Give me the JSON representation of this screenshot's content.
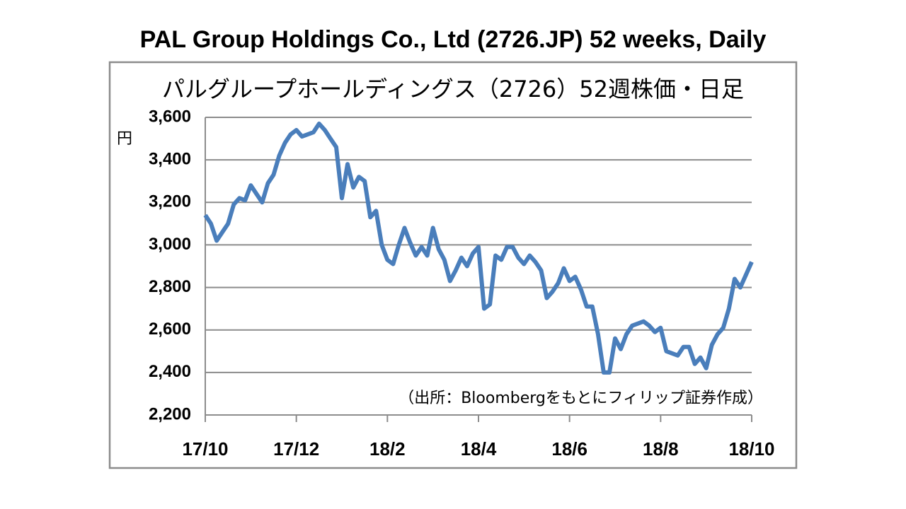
{
  "chart_data": {
    "type": "line",
    "title": "PAL Group Holdings Co., Ltd (2726.JP) 52 weeks, Daily",
    "subtitle": "パルグループホールディングス（2726）52週株価・日足",
    "y_unit": "円",
    "annotation": "（出所：Bloombergをもとにフィリップ証券作成）",
    "categories": [
      "17/10",
      null,
      null,
      null,
      null,
      null,
      null,
      null,
      null,
      null,
      null,
      null,
      null,
      null,
      null,
      null,
      "17/12",
      null,
      null,
      null,
      null,
      null,
      null,
      null,
      null,
      null,
      null,
      null,
      null,
      null,
      null,
      null,
      "18/2",
      null,
      null,
      null,
      null,
      null,
      null,
      null,
      null,
      null,
      null,
      null,
      null,
      null,
      null,
      null,
      "18/4",
      null,
      null,
      null,
      null,
      null,
      null,
      null,
      null,
      null,
      null,
      null,
      null,
      null,
      null,
      null,
      "18/6",
      null,
      null,
      null,
      null,
      null,
      null,
      null,
      null,
      null,
      null,
      null,
      null,
      null,
      null,
      null,
      "18/8",
      null,
      null,
      null,
      null,
      null,
      null,
      null,
      null,
      null,
      null,
      null,
      null,
      null,
      null,
      null,
      "18/10"
    ],
    "series": [
      {
        "name": "2726",
        "color": "#4a7ebb",
        "values": [
          3140,
          3100,
          3020,
          3060,
          3100,
          3190,
          3220,
          3210,
          3280,
          3240,
          3200,
          3290,
          3330,
          3420,
          3480,
          3520,
          3540,
          3510,
          3520,
          3530,
          3570,
          3540,
          3500,
          3460,
          3220,
          3380,
          3270,
          3320,
          3300,
          3130,
          3160,
          3000,
          2930,
          2910,
          3000,
          3080,
          3010,
          2950,
          2990,
          2950,
          3080,
          2980,
          2930,
          2830,
          2880,
          2940,
          2900,
          2960,
          2990,
          2700,
          2720,
          2950,
          2930,
          2990,
          2990,
          2940,
          2910,
          2950,
          2920,
          2880,
          2750,
          2780,
          2820,
          2890,
          2830,
          2850,
          2790,
          2710,
          2710,
          2580,
          2400,
          2400,
          2560,
          2510,
          2580,
          2620,
          2630,
          2640,
          2620,
          2590,
          2610,
          2500,
          2490,
          2480,
          2520,
          2520,
          2440,
          2470,
          2420,
          2530,
          2580,
          2610,
          2700,
          2840,
          2800,
          2860,
          2920
        ]
      }
    ],
    "ylim": [
      2200,
      3600
    ],
    "yticks": [
      {
        "value": 2200,
        "label": "2,200"
      },
      {
        "value": 2400,
        "label": "2,400"
      },
      {
        "value": 2600,
        "label": "2,600"
      },
      {
        "value": 2800,
        "label": "2,800"
      },
      {
        "value": 3000,
        "label": "3,000"
      },
      {
        "value": 3200,
        "label": "3,200"
      },
      {
        "value": 3400,
        "label": "3,400"
      },
      {
        "value": 3600,
        "label": "3,600"
      }
    ],
    "grid": true
  }
}
